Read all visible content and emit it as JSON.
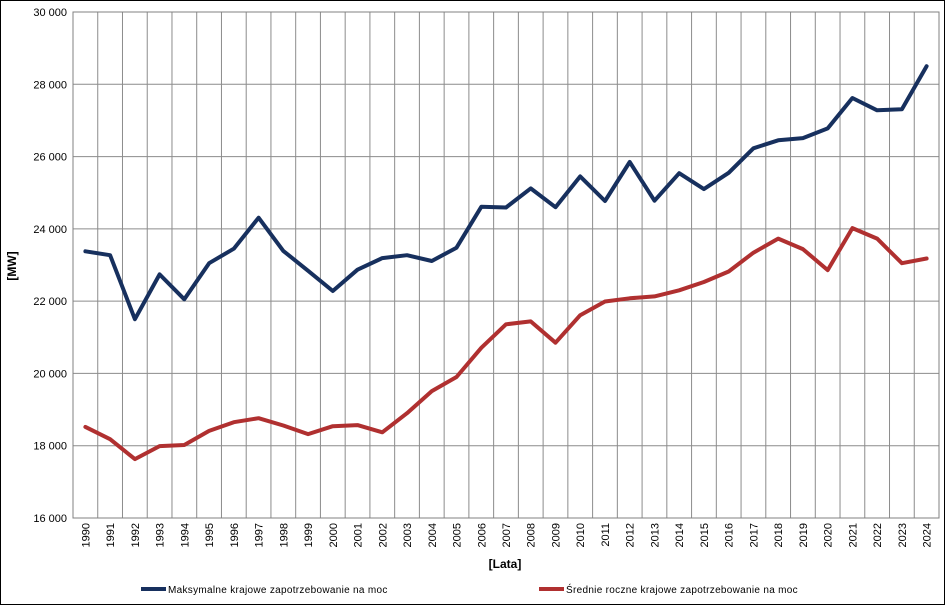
{
  "chart_data": {
    "type": "line",
    "title": "",
    "xlabel": "[Lata]",
    "ylabel": "[MW]",
    "ylim": [
      16000,
      30000
    ],
    "y_ticks": [
      16000,
      18000,
      20000,
      22000,
      24000,
      26000,
      28000,
      30000
    ],
    "y_tick_labels": [
      "16 000",
      "18 000",
      "20 000",
      "22 000",
      "24 000",
      "26 000",
      "28 000",
      "30 000"
    ],
    "grid": true,
    "legend_position": "bottom",
    "categories": [
      "1990",
      "1991",
      "1992",
      "1993",
      "1994",
      "1995",
      "1996",
      "1997",
      "1998",
      "1999",
      "2000",
      "2001",
      "2002",
      "2003",
      "2004",
      "2005",
      "2006",
      "2007",
      "2008",
      "2009",
      "2010",
      "2011",
      "2012",
      "2013",
      "2014",
      "2015",
      "2016",
      "2017",
      "2018",
      "2019",
      "2020",
      "2021",
      "2022",
      "2023",
      "2024"
    ],
    "series": [
      {
        "name": "Maksymalne krajowe zapotrzebowanie na moc",
        "color": "#17305e",
        "values": [
          23380,
          23270,
          21500,
          22740,
          22050,
          23050,
          23450,
          24310,
          23390,
          22840,
          22280,
          22870,
          23190,
          23270,
          23110,
          23480,
          24610,
          24590,
          25120,
          24600,
          25450,
          24770,
          25850,
          24780,
          25540,
          25100,
          25550,
          26230,
          26450,
          26510,
          26780,
          27620,
          27280,
          27310,
          28500
        ]
      },
      {
        "name": "Średnie roczne krajowe zapotrzebowanie na moc",
        "color": "#b03030",
        "values": [
          18520,
          18180,
          17630,
          17990,
          18020,
          18410,
          18650,
          18760,
          18560,
          18320,
          18540,
          18570,
          18370,
          18900,
          19510,
          19900,
          20710,
          21360,
          21440,
          20850,
          21610,
          21990,
          22080,
          22130,
          22300,
          22530,
          22820,
          23340,
          23730,
          23440,
          22860,
          24020,
          23730,
          23050,
          23180
        ]
      }
    ]
  }
}
